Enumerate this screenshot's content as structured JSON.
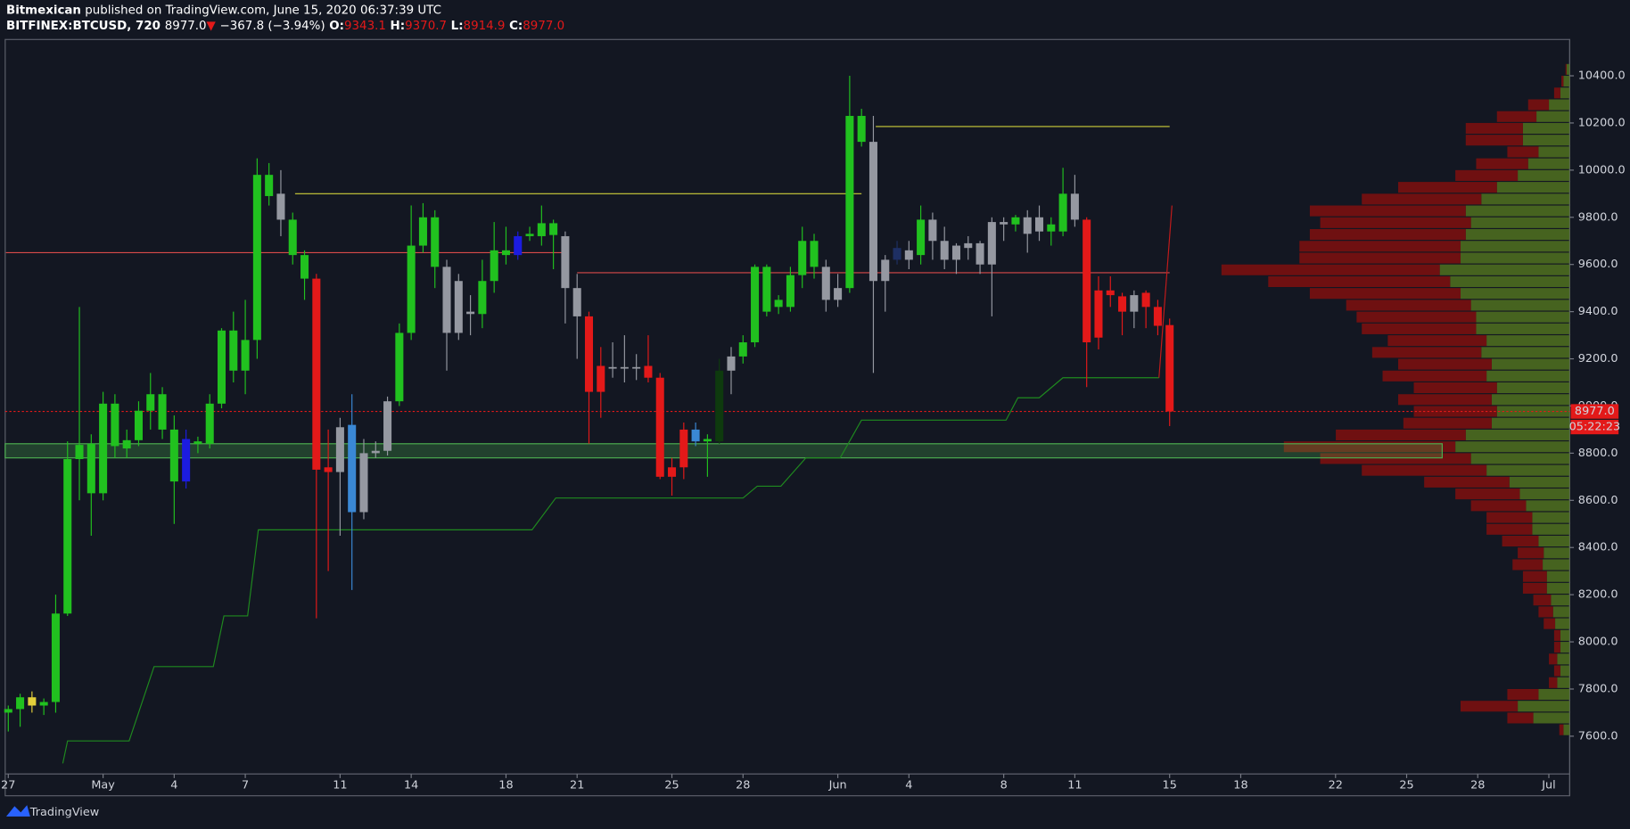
{
  "header": {
    "author": "Bitmexican",
    "published": "published on TradingView.com, June 15, 2020 06:37:39 UTC",
    "symbol": "BITFINEX:BTCUSD, 720",
    "last": "8977.0",
    "arrow": "▼",
    "change": "−367.8 (−3.94%)",
    "ohlc": [
      {
        "label": "O:",
        "value": "9343.1"
      },
      {
        "label": "H:",
        "value": "9370.7"
      },
      {
        "label": "L:",
        "value": "8914.9"
      },
      {
        "label": "C:",
        "value": "8977.0"
      }
    ],
    "brand": "TradingView"
  },
  "chart_data": {
    "type": "candlestick",
    "x": [
      0,
      0.5,
      1,
      1.5,
      2,
      2.5,
      3,
      3.5,
      4,
      4.5,
      5,
      5.5,
      6,
      6.5,
      7,
      7.5,
      8,
      8.5,
      9,
      9.5,
      10,
      10.5,
      11,
      11.5,
      12,
      12.5,
      13,
      13.5,
      14,
      14.5,
      15,
      15.5,
      16,
      16.5,
      17,
      17.5,
      18,
      18.5,
      19,
      19.5,
      20,
      20.5,
      21,
      21.5,
      22,
      22.5,
      23,
      23.5,
      24,
      24.5,
      25,
      25.5,
      26,
      26.5,
      27,
      27.5,
      28,
      28.5,
      29,
      29.5,
      30,
      30.5,
      31,
      31.5,
      32,
      32.5,
      33,
      33.5,
      34,
      34.5,
      35,
      35.5,
      36,
      36.5,
      37,
      37.5,
      38,
      38.5,
      39,
      39.5,
      40,
      40.5,
      41,
      41.5,
      42,
      42.5,
      43,
      43.5,
      44,
      44.5,
      45,
      45.5,
      46,
      46.5,
      47,
      47.5,
      48,
      48.5,
      49
    ],
    "open": [
      7700,
      7715,
      7765,
      7730,
      7745,
      8120,
      8775,
      8630,
      8630,
      8830,
      8820,
      8855,
      8980,
      8900,
      8680,
      8860,
      8840,
      8840,
      9010,
      9150,
      9150,
      9280,
      9890,
      9900,
      9640,
      9540,
      9540,
      8740,
      8720,
      8920,
      8550,
      8800,
      8810,
      9020,
      9310,
      9680,
      9590,
      9590,
      9310,
      9390,
      9390,
      9530,
      9640,
      9720,
      9720,
      9720,
      9725,
      9720,
      9500,
      9380,
      9170,
      9160,
      9165,
      9160,
      9170,
      9120,
      8740,
      8900,
      8900,
      8850,
      8850,
      9150,
      9210,
      9270,
      9400,
      9420,
      9420,
      9555,
      9590,
      9590,
      9450,
      9500,
      10120,
      10120,
      9530,
      9670,
      9620,
      9640,
      9790,
      9700,
      9620,
      9670,
      9690,
      9600,
      9770,
      9770,
      9800,
      9740,
      9740,
      9740,
      9900,
      9790,
      9490,
      9490,
      9465,
      9400,
      9480,
      9420,
      9343.1
    ],
    "high": [
      7730,
      7780,
      7790,
      7760,
      8200,
      8850,
      9420,
      8880,
      9060,
      9050,
      8900,
      9020,
      9140,
      9080,
      8960,
      8900,
      8870,
      9050,
      9330,
      9400,
      9450,
      10050,
      10030,
      10000,
      9820,
      9660,
      9560,
      8900,
      8950,
      9050,
      8860,
      8850,
      9040,
      9350,
      9850,
      9860,
      9830,
      9620,
      9560,
      9470,
      9620,
      9780,
      9760,
      9740,
      9760,
      9850,
      9790,
      9740,
      9560,
      9400,
      9250,
      9270,
      9300,
      9220,
      9300,
      9140,
      8780,
      8930,
      8930,
      8880,
      9200,
      9250,
      9300,
      9600,
      9600,
      9470,
      9590,
      9760,
      9730,
      9620,
      9560,
      10400,
      10260,
      10230,
      9640,
      9700,
      9700,
      9850,
      9820,
      9760,
      9690,
      9720,
      9700,
      9800,
      9800,
      9810,
      9830,
      9850,
      9800,
      10010,
      9980,
      9800,
      9550,
      9550,
      9480,
      9490,
      9490,
      9450,
      9370.7
    ],
    "low": [
      7620,
      7640,
      7700,
      7690,
      7700,
      8110,
      8600,
      8450,
      8600,
      8780,
      8780,
      8830,
      8900,
      8860,
      8500,
      8650,
      8800,
      8820,
      8990,
      9100,
      9050,
      9200,
      9850,
      9720,
      9600,
      9450,
      8100,
      8300,
      8450,
      8220,
      8520,
      8780,
      8790,
      9000,
      9280,
      9650,
      9500,
      9150,
      9280,
      9300,
      9330,
      9480,
      9600,
      9620,
      9700,
      9680,
      9580,
      9350,
      9200,
      8840,
      8950,
      9120,
      9100,
      9110,
      9100,
      8690,
      8620,
      8690,
      8830,
      8700,
      8840,
      9050,
      9180,
      9250,
      9380,
      9390,
      9400,
      9500,
      9540,
      9400,
      9420,
      9480,
      10100,
      9140,
      9400,
      9600,
      9580,
      9600,
      9620,
      9580,
      9560,
      9620,
      9560,
      9380,
      9700,
      9740,
      9650,
      9700,
      9680,
      9720,
      9760,
      9080,
      9240,
      9420,
      9300,
      9330,
      9330,
      9300,
      8914.9
    ],
    "close": [
      7715,
      7765,
      7730,
      7745,
      8120,
      8775,
      8835,
      8840,
      9010,
      9010,
      8855,
      8980,
      9050,
      9050,
      8900,
      8680,
      8850,
      9010,
      9320,
      9320,
      9280,
      9980,
      9980,
      9790,
      9790,
      9640,
      8730,
      8720,
      8910,
      8550,
      8800,
      8810,
      9020,
      9310,
      9680,
      9800,
      9800,
      9310,
      9530,
      9400,
      9530,
      9660,
      9660,
      9640,
      9730,
      9775,
      9775,
      9500,
      9380,
      9060,
      9060,
      9165,
      9160,
      9165,
      9120,
      8700,
      8700,
      8740,
      8850,
      8860,
      9150,
      9210,
      9270,
      9590,
      9590,
      9450,
      9555,
      9700,
      9700,
      9450,
      9500,
      10230,
      10230,
      9530,
      9620,
      9620,
      9660,
      9790,
      9700,
      9620,
      9680,
      9690,
      9600,
      9780,
      9780,
      9800,
      9730,
      9800,
      9770,
      9900,
      9790,
      9270,
      9290,
      9470,
      9400,
      9470,
      9420,
      9340,
      8977
    ],
    "colors": [
      "#21c11f",
      "#21c11f",
      "#e3cf3b",
      "#21c11f",
      "#21c11f",
      "#21c11f",
      "#21c11f",
      "#21c11f",
      "#21c11f",
      "#21c11f",
      "#21c11f",
      "#21c11f",
      "#21c11f",
      "#21c11f",
      "#21c11f",
      "#1c1ce0",
      "#21c11f",
      "#21c11f",
      "#21c11f",
      "#21c11f",
      "#21c11f",
      "#21c11f",
      "#21c11f",
      "#9598a1",
      "#21c11f",
      "#21c11f",
      "#e31919",
      "#e31919",
      "#9598a1",
      "#3a88d5",
      "#9598a1",
      "#9598a1",
      "#9598a1",
      "#21c11f",
      "#21c11f",
      "#21c11f",
      "#21c11f",
      "#9598a1",
      "#9598a1",
      "#9598a1",
      "#21c11f",
      "#21c11f",
      "#21c11f",
      "#1c1ce0",
      "#21c11f",
      "#21c11f",
      "#21c11f",
      "#9598a1",
      "#9598a1",
      "#e31919",
      "#e31919",
      "#9598a1",
      "#9598a1",
      "#9598a1",
      "#e31919",
      "#e31919",
      "#e31919",
      "#e31919",
      "#3a88d5",
      "#21c11f",
      "#0e3a0e",
      "#9598a1",
      "#21c11f",
      "#21c11f",
      "#21c11f",
      "#21c11f",
      "#21c11f",
      "#21c11f",
      "#21c11f",
      "#9598a1",
      "#9598a1",
      "#21c11f",
      "#21c11f",
      "#9598a1",
      "#9598a1",
      "#1e2f63",
      "#9598a1",
      "#21c11f",
      "#9598a1",
      "#9598a1",
      "#9598a1",
      "#9598a1",
      "#9598a1",
      "#9598a1",
      "#9598a1",
      "#21c11f",
      "#9598a1",
      "#9598a1",
      "#21c11f",
      "#21c11f",
      "#9598a1",
      "#e31919",
      "#e31919",
      "#e31919",
      "#e31919",
      "#9598a1",
      "#e31919",
      "#e31919",
      "#e31919"
    ],
    "xlim": [
      -0.13,
      65.88
    ],
    "xticks": [
      {
        "value": 0,
        "label": "27"
      },
      {
        "value": 4,
        "label": "May"
      },
      {
        "value": 7,
        "label": "4"
      },
      {
        "value": 10,
        "label": "7"
      },
      {
        "value": 14,
        "label": "11"
      },
      {
        "value": 17,
        "label": "14"
      },
      {
        "value": 21,
        "label": "18"
      },
      {
        "value": 24,
        "label": "21"
      },
      {
        "value": 28,
        "label": "25"
      },
      {
        "value": 31,
        "label": "28"
      },
      {
        "value": 35,
        "label": "Jun"
      },
      {
        "value": 38,
        "label": "4"
      },
      {
        "value": 42,
        "label": "8"
      },
      {
        "value": 45,
        "label": "11"
      },
      {
        "value": 49,
        "label": "15"
      },
      {
        "value": 52,
        "label": "18"
      },
      {
        "value": 56,
        "label": "22"
      },
      {
        "value": 59,
        "label": "25"
      },
      {
        "value": 62,
        "label": "28"
      },
      {
        "value": 65,
        "label": "Jul"
      }
    ],
    "ylim": [
      7440,
      10554
    ],
    "yticks": [
      {
        "value": 7600,
        "label": "7600.0"
      },
      {
        "value": 7800,
        "label": "7800.0"
      },
      {
        "value": 8000,
        "label": "8000.0"
      },
      {
        "value": 8200,
        "label": "8200.0"
      },
      {
        "value": 8400,
        "label": "8400.0"
      },
      {
        "value": 8600,
        "label": "8600.0"
      },
      {
        "value": 8800,
        "label": "8800.0"
      },
      {
        "value": 9000,
        "label": "9000.0"
      },
      {
        "value": 9200,
        "label": "9200.0"
      },
      {
        "value": 9400,
        "label": "9400.0"
      },
      {
        "value": 9600,
        "label": "9600.0"
      },
      {
        "value": 9800,
        "label": "9800.0"
      },
      {
        "value": 10000,
        "label": "10000.0"
      },
      {
        "value": 10200,
        "label": "10200.0"
      },
      {
        "value": 10400,
        "label": "10400.0"
      }
    ],
    "price_tag": {
      "value": 8977,
      "label": "8977.0",
      "countdown": "05:22:23",
      "color": "#e31919"
    },
    "levels": [
      {
        "price": 9650,
        "from": -0.1,
        "to": 23.5,
        "color": "#d84a4a"
      },
      {
        "price": 9565,
        "from": 24,
        "to": 49,
        "color": "#d84a4a"
      },
      {
        "price": 9900,
        "from": 12.1,
        "to": 36,
        "color": "#cfcf3a"
      },
      {
        "price": 10185,
        "from": 36.6,
        "to": 49,
        "color": "#cfcf3a"
      }
    ],
    "zone": {
      "low": 8780,
      "high": 8840,
      "from": -0.13,
      "to": 60.5,
      "color": "#4caf50"
    },
    "trail": {
      "color": "#1f8a1f",
      "x": [
        2.3,
        2.5,
        5.1,
        6.15,
        8.65,
        9.1,
        10.1,
        10.55,
        22.1,
        23.1,
        31.0,
        31.6,
        32.6,
        33.65,
        35.1,
        36.0,
        42.1,
        42.6,
        43.5,
        44.5,
        48.55
      ],
      "y": [
        7485,
        7580,
        7580,
        7895,
        7895,
        8110,
        8110,
        8475,
        8475,
        8610,
        8610,
        8660,
        8660,
        8780,
        8780,
        8940,
        8940,
        9035,
        9035,
        9120,
        9120
      ]
    },
    "spike": {
      "color": "#c21b1b",
      "x": [
        48.55,
        49.1
      ],
      "y": [
        9120,
        9850
      ]
    },
    "volume_profile": {
      "up_color": "#4d6b1f",
      "down_color": "#7a1010",
      "prices": [
        7600,
        7650,
        7700,
        7750,
        7800,
        7850,
        7900,
        7950,
        8000,
        8050,
        8100,
        8150,
        8200,
        8250,
        8300,
        8350,
        8400,
        8450,
        8500,
        8550,
        8600,
        8650,
        8700,
        8750,
        8800,
        8850,
        8900,
        8950,
        9000,
        9050,
        9100,
        9150,
        9200,
        9250,
        9300,
        9350,
        9400,
        9450,
        9500,
        9550,
        9600,
        9650,
        9700,
        9750,
        9800,
        9850,
        9900,
        9950,
        10000,
        10050,
        10100,
        10150,
        10200,
        10250,
        10300,
        10350,
        10400
      ],
      "up": [
        6,
        35,
        50,
        30,
        12,
        9,
        12,
        9,
        9,
        14,
        16,
        18,
        22,
        22,
        26,
        25,
        30,
        36,
        36,
        42,
        48,
        58,
        80,
        95,
        110,
        100,
        75,
        70,
        75,
        70,
        80,
        75,
        85,
        80,
        90,
        90,
        95,
        105,
        115,
        125,
        105,
        105,
        100,
        95,
        100,
        85,
        70,
        50,
        40,
        30,
        45,
        45,
        32,
        20,
        9,
        6,
        3
      ],
      "down": [
        4,
        25,
        55,
        30,
        8,
        6,
        8,
        6,
        6,
        11,
        14,
        17,
        23,
        23,
        29,
        25,
        35,
        44,
        44,
        53,
        62,
        82,
        120,
        145,
        165,
        125,
        85,
        80,
        90,
        80,
        100,
        90,
        105,
        95,
        110,
        115,
        120,
        145,
        175,
        210,
        155,
        155,
        150,
        145,
        150,
        115,
        95,
        60,
        50,
        30,
        55,
        55,
        38,
        20,
        6,
        2,
        1
      ]
    }
  }
}
